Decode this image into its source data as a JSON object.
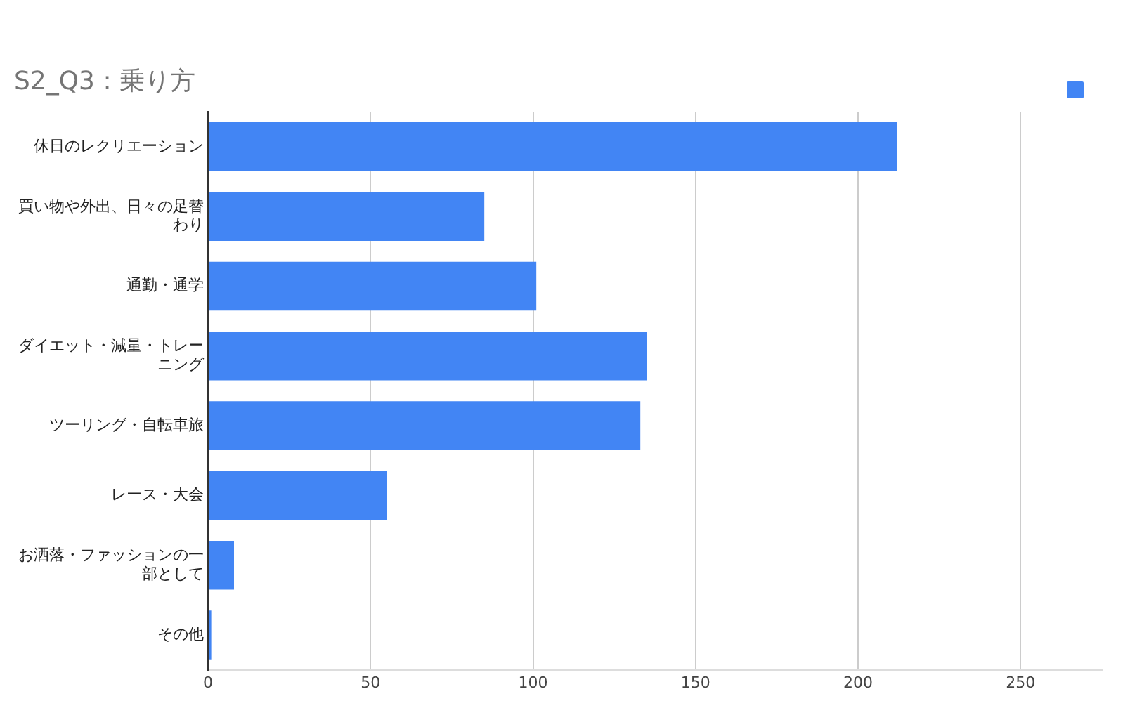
{
  "chart_data": {
    "type": "bar",
    "title": "S2_Q3 : 乗り方",
    "orientation": "horizontal",
    "categories": [
      "休日のレクリエーション",
      "買い物や外出、日々の足替わり",
      "通勤・通学",
      "ダイエット・減量・トレーニング",
      "ツーリング・自転車旅",
      "レース・大会",
      "お洒落・ファッションの一部として",
      "その他"
    ],
    "series": [
      {
        "color": "#4285f4",
        "values": [
          212,
          85,
          101,
          135,
          133,
          55,
          8,
          1
        ]
      }
    ],
    "xlim": [
      0,
      275
    ],
    "xticks": [
      0,
      50,
      100,
      150,
      200,
      250
    ],
    "grid": "x"
  }
}
